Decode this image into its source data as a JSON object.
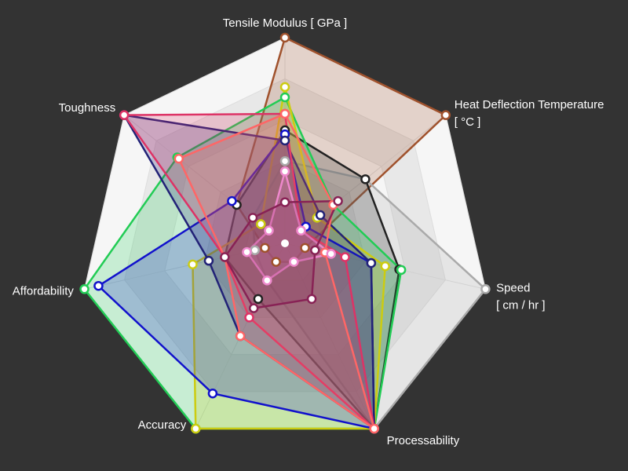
{
  "chart_data": {
    "type": "radar",
    "categories": [
      [
        "Tensile Modulus [ GPa ]"
      ],
      [
        "Heat Deflection Temperature",
        "[ °C ]"
      ],
      [
        "Speed",
        "[ cm / hr ]"
      ],
      [
        "Processability"
      ],
      [
        "Accuracy"
      ],
      [
        "Affordability"
      ],
      [
        "Toughness"
      ]
    ],
    "ylim": [
      0,
      1
    ],
    "yticks": [
      0.2,
      0.4,
      0.6,
      0.8,
      1
    ],
    "grid": true,
    "series": [
      {
        "color": "#a0522d",
        "values": [
          1.0,
          1.0,
          0.1,
          0.1,
          0.1,
          0.1,
          0.3
        ]
      },
      {
        "color": "#aaaaaa",
        "values": [
          0.4,
          0.5,
          1.0,
          1.0,
          0.2,
          0.15,
          0.2
        ]
      },
      {
        "color": "#222222",
        "values": [
          0.55,
          0.5,
          0.57,
          1.0,
          0.3,
          0.3,
          0.3
        ]
      },
      {
        "color": "#22cc55",
        "values": [
          0.71,
          0.3,
          0.58,
          1.0,
          1.0,
          1.0,
          0.67
        ]
      },
      {
        "color": "#cccc11",
        "values": [
          0.76,
          0.2,
          0.5,
          1.0,
          1.0,
          0.46,
          0.15
        ]
      },
      {
        "color": "#1111cc",
        "values": [
          0.53,
          0.13,
          0.43,
          1.0,
          0.81,
          0.93,
          0.33
        ]
      },
      {
        "color": "#222277",
        "values": [
          0.5,
          0.22,
          0.43,
          1.0,
          0.5,
          0.38,
          1.0
        ]
      },
      {
        "color": "#dd3366",
        "values": [
          0.63,
          0.1,
          0.3,
          1.0,
          0.4,
          0.3,
          1.0
        ]
      },
      {
        "color": "#ff6666",
        "values": [
          0.63,
          0.3,
          0.2,
          1.0,
          0.5,
          0.3,
          0.66
        ]
      },
      {
        "color": "#ee88cc",
        "values": [
          0.35,
          0.1,
          0.23,
          0.1,
          0.2,
          0.19,
          0.1
        ]
      },
      {
        "color": "#882255",
        "values": [
          0.2,
          0.33,
          0.15,
          0.3,
          0.35,
          0.3,
          0.2
        ]
      }
    ]
  }
}
